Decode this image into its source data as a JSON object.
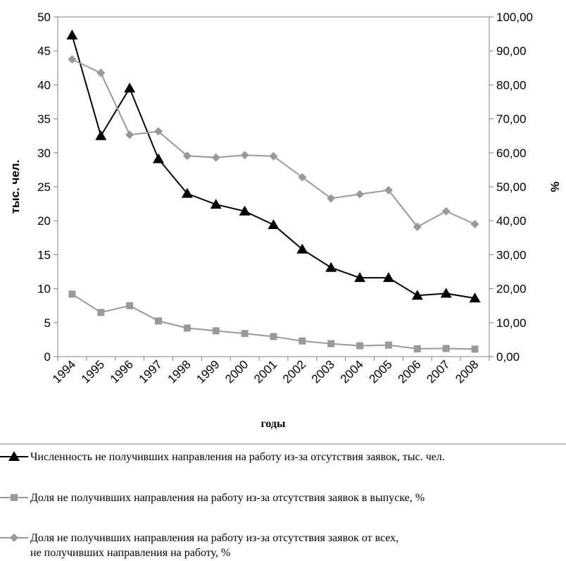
{
  "chart_data": {
    "type": "line",
    "x": [
      "1994",
      "1995",
      "1996",
      "1997",
      "1998",
      "1999",
      "2000",
      "2001",
      "2002",
      "2003",
      "2004",
      "2005",
      "2006",
      "2007",
      "2008"
    ],
    "xlabel": "годы",
    "ylabel_left": "тыс. чел.",
    "ylabel_right": "%",
    "ylim_left": [
      0,
      50
    ],
    "ylim_right": [
      0,
      100
    ],
    "yticks_left": [
      "0",
      "5",
      "10",
      "15",
      "20",
      "25",
      "30",
      "35",
      "40",
      "45",
      "50"
    ],
    "yticks_right": [
      "0,00",
      "10,00",
      "20,00",
      "30,00",
      "40,00",
      "50,00",
      "60,00",
      "70,00",
      "80,00",
      "90,00",
      "100,00"
    ],
    "grid": false,
    "legend_position": "bottom",
    "series": [
      {
        "name": "Численность не получивших направления на работу из-за отсутствия заявок, тыс. чел.",
        "axis": "left",
        "marker": "triangle",
        "color": "#000000",
        "values": [
          47.3,
          32.5,
          39.5,
          29.1,
          24.0,
          22.4,
          21.4,
          19.4,
          15.8,
          13.1,
          11.6,
          11.6,
          9.0,
          9.3,
          8.6
        ]
      },
      {
        "name": "Доля не получивших направления на работу из-за отсутствия заявок в выпуске, %",
        "axis": "right",
        "marker": "square",
        "color": "#999999",
        "values": [
          18.4,
          13.0,
          15.0,
          10.5,
          8.4,
          7.6,
          6.8,
          5.9,
          4.6,
          3.8,
          3.2,
          3.4,
          2.3,
          2.4,
          2.2
        ]
      },
      {
        "name": "Доля не получивших направления на работу из-за отсутствия заявок от всех, не получивших направления на работу, %",
        "axis": "right",
        "marker": "diamond",
        "color": "#999999",
        "values": [
          87.5,
          83.5,
          65.3,
          66.3,
          59.1,
          58.6,
          59.3,
          59.0,
          52.8,
          46.6,
          47.8,
          49.0,
          38.2,
          42.8,
          39.0
        ]
      }
    ]
  }
}
